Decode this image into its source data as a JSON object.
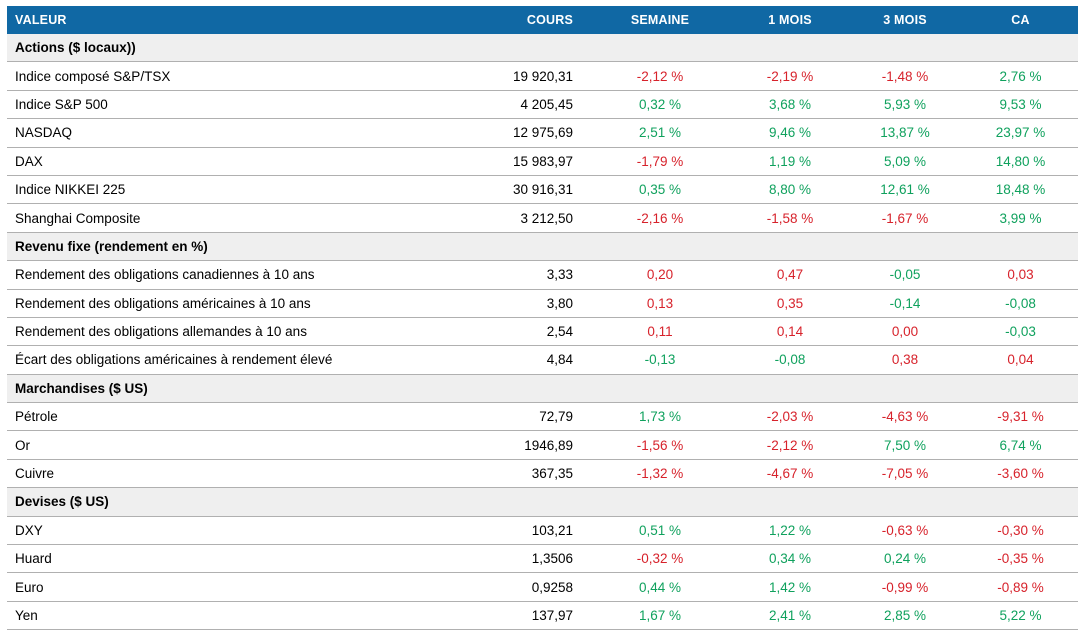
{
  "colors": {
    "header_bg": "#1068A4",
    "section_bg": "#EFEFEF",
    "border": "#B0B0B0",
    "positive": "#0FA15D",
    "negative": "#D7222B",
    "header_text": "#FFFFFF",
    "body_text": "#000000"
  },
  "table": {
    "columns": [
      "VALEUR",
      "COURS",
      "SEMAINE",
      "1 MOIS",
      "3 MOIS",
      "CA"
    ],
    "sections": [
      {
        "title": "Actions ($ locaux))",
        "rows": [
          {
            "label": "Indice composé S&P/TSX",
            "cours": "19 920,31",
            "changes": [
              {
                "text": "-2,12 %",
                "color": "negative"
              },
              {
                "text": "-2,19 %",
                "color": "negative"
              },
              {
                "text": "-1,48 %",
                "color": "negative"
              },
              {
                "text": "2,76 %",
                "color": "positive"
              }
            ]
          },
          {
            "label": "Indice S&P 500",
            "cours": "4 205,45",
            "changes": [
              {
                "text": "0,32 %",
                "color": "positive"
              },
              {
                "text": "3,68 %",
                "color": "positive"
              },
              {
                "text": "5,93 %",
                "color": "positive"
              },
              {
                "text": "9,53 %",
                "color": "positive"
              }
            ]
          },
          {
            "label": "NASDAQ",
            "cours": "12 975,69",
            "changes": [
              {
                "text": "2,51 %",
                "color": "positive"
              },
              {
                "text": "9,46 %",
                "color": "positive"
              },
              {
                "text": "13,87 %",
                "color": "positive"
              },
              {
                "text": "23,97 %",
                "color": "positive"
              }
            ]
          },
          {
            "label": "DAX",
            "cours": "15 983,97",
            "changes": [
              {
                "text": "-1,79 %",
                "color": "negative"
              },
              {
                "text": "1,19 %",
                "color": "positive"
              },
              {
                "text": "5,09 %",
                "color": "positive"
              },
              {
                "text": "14,80 %",
                "color": "positive"
              }
            ]
          },
          {
            "label": "Indice NIKKEI 225",
            "cours": "30 916,31",
            "changes": [
              {
                "text": "0,35 %",
                "color": "positive"
              },
              {
                "text": "8,80 %",
                "color": "positive"
              },
              {
                "text": "12,61 %",
                "color": "positive"
              },
              {
                "text": "18,48 %",
                "color": "positive"
              }
            ]
          },
          {
            "label": "Shanghai Composite",
            "cours": "3 212,50",
            "changes": [
              {
                "text": "-2,16 %",
                "color": "negative"
              },
              {
                "text": "-1,58 %",
                "color": "negative"
              },
              {
                "text": "-1,67 %",
                "color": "negative"
              },
              {
                "text": "3,99 %",
                "color": "positive"
              }
            ]
          }
        ]
      },
      {
        "title": "Revenu fixe (rendement en %)",
        "rows": [
          {
            "label": "Rendement des obligations canadiennes à 10 ans",
            "cours": "3,33",
            "changes": [
              {
                "text": "0,20",
                "color": "negative"
              },
              {
                "text": "0,47",
                "color": "negative"
              },
              {
                "text": "-0,05",
                "color": "positive"
              },
              {
                "text": "0,03",
                "color": "negative"
              }
            ]
          },
          {
            "label": "Rendement des obligations américaines à 10 ans",
            "cours": "3,80",
            "changes": [
              {
                "text": "0,13",
                "color": "negative"
              },
              {
                "text": "0,35",
                "color": "negative"
              },
              {
                "text": "-0,14",
                "color": "positive"
              },
              {
                "text": "-0,08",
                "color": "positive"
              }
            ]
          },
          {
            "label": "Rendement des obligations allemandes à 10 ans",
            "cours": "2,54",
            "changes": [
              {
                "text": "0,11",
                "color": "negative"
              },
              {
                "text": "0,14",
                "color": "negative"
              },
              {
                "text": "0,00",
                "color": "negative"
              },
              {
                "text": "-0,03",
                "color": "positive"
              }
            ]
          },
          {
            "label": "Écart des obligations américaines à rendement élevé",
            "cours": "4,84",
            "changes": [
              {
                "text": "-0,13",
                "color": "positive"
              },
              {
                "text": "-0,08",
                "color": "positive"
              },
              {
                "text": "0,38",
                "color": "negative"
              },
              {
                "text": "0,04",
                "color": "negative"
              }
            ]
          }
        ]
      },
      {
        "title": "Marchandises ($ US)",
        "rows": [
          {
            "label": "Pétrole",
            "cours": "72,79",
            "changes": [
              {
                "text": "1,73 %",
                "color": "positive"
              },
              {
                "text": "-2,03 %",
                "color": "negative"
              },
              {
                "text": "-4,63 %",
                "color": "negative"
              },
              {
                "text": "-9,31 %",
                "color": "negative"
              }
            ]
          },
          {
            "label": "Or",
            "cours": "1946,89",
            "changes": [
              {
                "text": "-1,56 %",
                "color": "negative"
              },
              {
                "text": "-2,12 %",
                "color": "negative"
              },
              {
                "text": "7,50 %",
                "color": "positive"
              },
              {
                "text": "6,74 %",
                "color": "positive"
              }
            ]
          },
          {
            "label": "Cuivre",
            "cours": "367,35",
            "changes": [
              {
                "text": "-1,32 %",
                "color": "negative"
              },
              {
                "text": "-4,67 %",
                "color": "negative"
              },
              {
                "text": "-7,05 %",
                "color": "negative"
              },
              {
                "text": "-3,60 %",
                "color": "negative"
              }
            ]
          }
        ]
      },
      {
        "title": "Devises ($ US)",
        "rows": [
          {
            "label": "DXY",
            "cours": "103,21",
            "changes": [
              {
                "text": "0,51 %",
                "color": "positive"
              },
              {
                "text": "1,22 %",
                "color": "positive"
              },
              {
                "text": "-0,63 %",
                "color": "negative"
              },
              {
                "text": "-0,30 %",
                "color": "negative"
              }
            ]
          },
          {
            "label": "Huard",
            "cours": "1,3506",
            "changes": [
              {
                "text": "-0,32 %",
                "color": "negative"
              },
              {
                "text": "0,34 %",
                "color": "positive"
              },
              {
                "text": "0,24 %",
                "color": "positive"
              },
              {
                "text": "-0,35 %",
                "color": "negative"
              }
            ]
          },
          {
            "label": "Euro",
            "cours": "0,9258",
            "changes": [
              {
                "text": "0,44 %",
                "color": "positive"
              },
              {
                "text": "1,42 %",
                "color": "positive"
              },
              {
                "text": "-0,99 %",
                "color": "negative"
              },
              {
                "text": "-0,89 %",
                "color": "negative"
              }
            ]
          },
          {
            "label": "Yen",
            "cours": "137,97",
            "changes": [
              {
                "text": "1,67 %",
                "color": "positive"
              },
              {
                "text": "2,41 %",
                "color": "positive"
              },
              {
                "text": "2,85 %",
                "color": "positive"
              },
              {
                "text": "5,22 %",
                "color": "positive"
              }
            ]
          }
        ]
      }
    ]
  }
}
